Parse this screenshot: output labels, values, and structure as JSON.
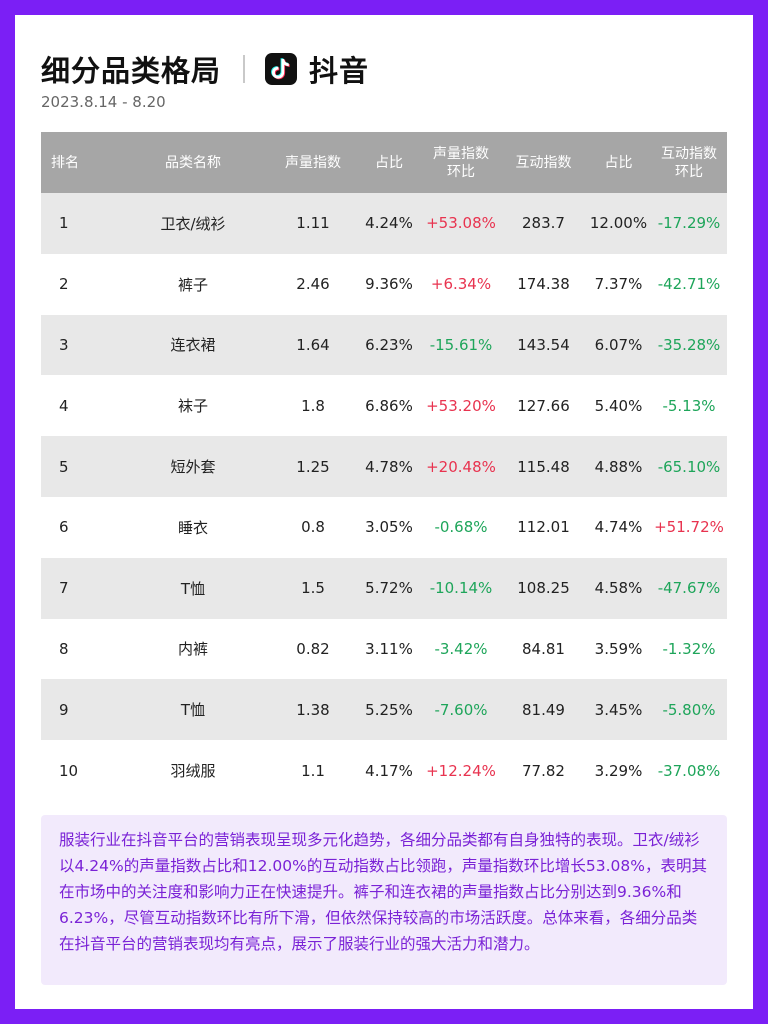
{
  "header": {
    "title": "细分品类格局",
    "brand": "抖音",
    "brand_icon": "tiktok-logo-icon",
    "date": "2023.8.14 - 8.20"
  },
  "table": {
    "headers": [
      "排名",
      "品类名称",
      "声量指数",
      "占比",
      "声量指数环比",
      "互动指数",
      "占比",
      "互动指数环比"
    ],
    "rows": [
      {
        "rank": "1",
        "name": "卫衣/绒衫",
        "volume_index": "1.11",
        "volume_share": "4.24%",
        "volume_mom": "+53.08%",
        "interaction_index": "283.7",
        "interaction_share": "12.00%",
        "interaction_mom": "-17.29%"
      },
      {
        "rank": "2",
        "name": "裤子",
        "volume_index": "2.46",
        "volume_share": "9.36%",
        "volume_mom": "+6.34%",
        "interaction_index": "174.38",
        "interaction_share": "7.37%",
        "interaction_mom": "-42.71%"
      },
      {
        "rank": "3",
        "name": "连衣裙",
        "volume_index": "1.64",
        "volume_share": "6.23%",
        "volume_mom": "-15.61%",
        "interaction_index": "143.54",
        "interaction_share": "6.07%",
        "interaction_mom": "-35.28%"
      },
      {
        "rank": "4",
        "name": "袜子",
        "volume_index": "1.8",
        "volume_share": "6.86%",
        "volume_mom": "+53.20%",
        "interaction_index": "127.66",
        "interaction_share": "5.40%",
        "interaction_mom": "-5.13%"
      },
      {
        "rank": "5",
        "name": "短外套",
        "volume_index": "1.25",
        "volume_share": "4.78%",
        "volume_mom": "+20.48%",
        "interaction_index": "115.48",
        "interaction_share": "4.88%",
        "interaction_mom": "-65.10%"
      },
      {
        "rank": "6",
        "name": "睡衣",
        "volume_index": "0.8",
        "volume_share": "3.05%",
        "volume_mom": "-0.68%",
        "interaction_index": "112.01",
        "interaction_share": "4.74%",
        "interaction_mom": "+51.72%"
      },
      {
        "rank": "7",
        "name": "T恤",
        "volume_index": "1.5",
        "volume_share": "5.72%",
        "volume_mom": "-10.14%",
        "interaction_index": "108.25",
        "interaction_share": "4.58%",
        "interaction_mom": "-47.67%"
      },
      {
        "rank": "8",
        "name": "内裤",
        "volume_index": "0.82",
        "volume_share": "3.11%",
        "volume_mom": "-3.42%",
        "interaction_index": "84.81",
        "interaction_share": "3.59%",
        "interaction_mom": "-1.32%"
      },
      {
        "rank": "9",
        "name": "T恤",
        "volume_index": "1.38",
        "volume_share": "5.25%",
        "volume_mom": "-7.60%",
        "interaction_index": "81.49",
        "interaction_share": "3.45%",
        "interaction_mom": "-5.80%"
      },
      {
        "rank": "10",
        "name": "羽绒服",
        "volume_index": "1.1",
        "volume_share": "4.17%",
        "volume_mom": "+12.24%",
        "interaction_index": "77.82",
        "interaction_share": "3.29%",
        "interaction_mom": "-37.08%"
      }
    ]
  },
  "summary": {
    "text": "服装行业在抖音平台的营销表现呈现多元化趋势，各细分品类都有自身独特的表现。卫衣/绒衫以4.24%的声量指数占比和12.00%的互动指数占比领跑，声量指数环比增长53.08%，表明其在市场中的关注度和影响力正在快速提升。裤子和连衣裙的声量指数占比分别达到9.36%和6.23%，尽管互动指数环比有所下滑，但依然保持较高的市场活跃度。总体来看，各细分品类在抖音平台的营销表现均有亮点，展示了服装行业的强大活力和潜力。"
  },
  "colors": {
    "frame": "#7b1ff5",
    "positive": "#e8334f",
    "negative": "#1ea55a",
    "summary_text": "#7a22d6",
    "summary_bg": "#f2eafc",
    "table_header_bg": "#a6a6a6"
  }
}
